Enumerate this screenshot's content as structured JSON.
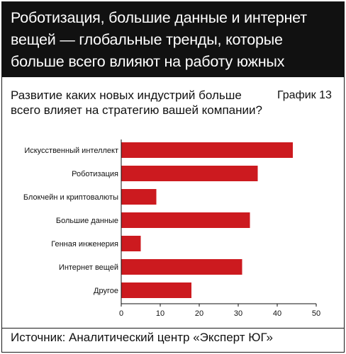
{
  "header": {
    "title": "Роботизация, большие данные и интернет вещей — глобальные тренды, которые больше всего влияют на работу южных инноваторов"
  },
  "question": "Развитие каких новых индустрий больше всего влияет на стратегию вашей компании?",
  "graph_label": "График 13",
  "source": "Источник: Аналитический центр «Эксперт ЮГ»",
  "chart_data": {
    "type": "bar",
    "orientation": "horizontal",
    "title": "",
    "xlabel": "",
    "ylabel": "",
    "categories": [
      "Искусственный интеллект",
      "Роботизация",
      "Блокчейн и криптовалюты",
      "Большие данные",
      "Генная инженерия",
      "Интернет вещей",
      "Другое"
    ],
    "values": [
      44,
      35,
      9,
      33,
      5,
      31,
      18
    ],
    "xlim": [
      0,
      50
    ],
    "xticks": [
      0,
      10,
      20,
      30,
      40,
      50
    ],
    "grid": false,
    "bar_color": "#cc1a1f"
  },
  "colors": {
    "header_bg": "#111111",
    "header_text": "#ffffff",
    "bar": "#cc1a1f",
    "text": "#111111"
  }
}
